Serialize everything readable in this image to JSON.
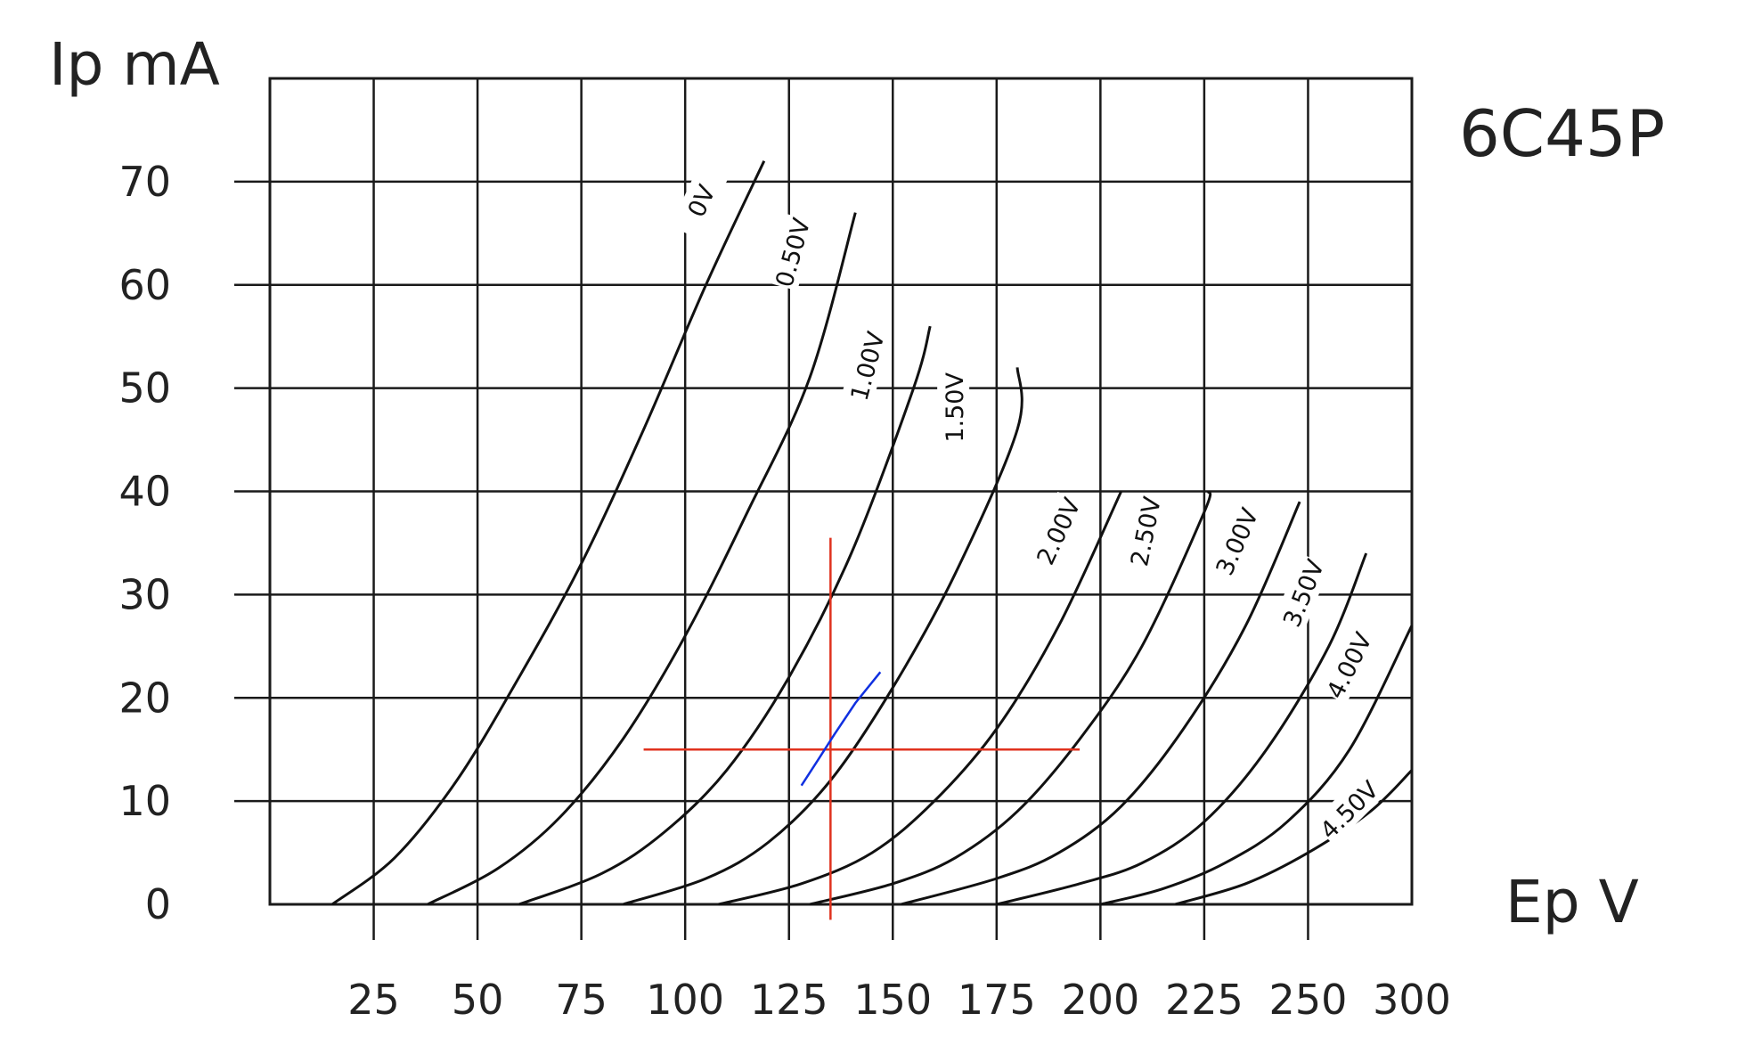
{
  "chart_data": {
    "type": "line",
    "title": "6C45P",
    "xlabel": "Ep V",
    "ylabel": "Ip mA",
    "xlim": [
      0,
      275
    ],
    "ylim": [
      0,
      80
    ],
    "x_ticks": [
      25,
      50,
      75,
      100,
      125,
      150,
      175,
      200,
      225,
      250,
      300
    ],
    "y_ticks": [
      0,
      10,
      20,
      30,
      40,
      50,
      60,
      70
    ],
    "grid": true,
    "series": [
      {
        "name": "0V",
        "x": [
          15,
          30,
          45,
          60,
          75,
          90,
          105,
          119
        ],
        "y": [
          0,
          4.5,
          12,
          22,
          33,
          46,
          60,
          72
        ]
      },
      {
        "name": "0.50V",
        "x": [
          38,
          55,
          70,
          85,
          100,
          115,
          130,
          141
        ],
        "y": [
          0,
          3.5,
          8.5,
          16,
          26,
          38,
          51,
          67
        ]
      },
      {
        "name": "1.00V",
        "x": [
          60,
          80,
          95,
          110,
          125,
          140,
          155,
          159
        ],
        "y": [
          0,
          3,
          7,
          13,
          22,
          34,
          50,
          56
        ]
      },
      {
        "name": "1.50V",
        "x": [
          85,
          105,
          120,
          135,
          150,
          165,
          180,
          180
        ],
        "y": [
          0,
          2.5,
          6,
          12,
          21,
          32,
          46,
          52
        ]
      },
      {
        "name": "2.00V",
        "x": [
          108,
          128,
          145,
          160,
          175,
          190,
          205
        ],
        "y": [
          0,
          2,
          5,
          10,
          17,
          27,
          40
        ]
      },
      {
        "name": "2.50V",
        "x": [
          130,
          150,
          165,
          180,
          195,
          210,
          225,
          226
        ],
        "y": [
          0,
          2,
          4.5,
          9,
          16,
          25,
          38,
          40
        ]
      },
      {
        "name": "3.00V",
        "x": [
          152,
          175,
          190,
          205,
          220,
          235,
          248
        ],
        "y": [
          0,
          2.5,
          5,
          9.5,
          17,
          27,
          39
        ]
      },
      {
        "name": "3.50V",
        "x": [
          175,
          195,
          210,
          225,
          240,
          255,
          264
        ],
        "y": [
          0,
          2,
          4,
          8,
          15,
          25,
          34
        ]
      },
      {
        "name": "4.00V",
        "x": [
          200,
          215,
          230,
          245,
          260,
          275
        ],
        "y": [
          0,
          1.5,
          4,
          8,
          15,
          27
        ]
      },
      {
        "name": "4.50V",
        "x": [
          218,
          235,
          250,
          265,
          275
        ],
        "y": [
          0,
          2,
          5,
          9,
          13
        ]
      }
    ],
    "annotations": {
      "crosshair": {
        "x": 135,
        "y": 15,
        "x_span": [
          90,
          195
        ],
        "y_span": [
          -1.5,
          35.5
        ],
        "color": "#e0321e"
      },
      "tangent": {
        "x": [
          128,
          132,
          136,
          141,
          147
        ],
        "y": [
          11.5,
          14,
          16.5,
          19.5,
          22.5
        ],
        "color": "#1030e0"
      }
    }
  }
}
